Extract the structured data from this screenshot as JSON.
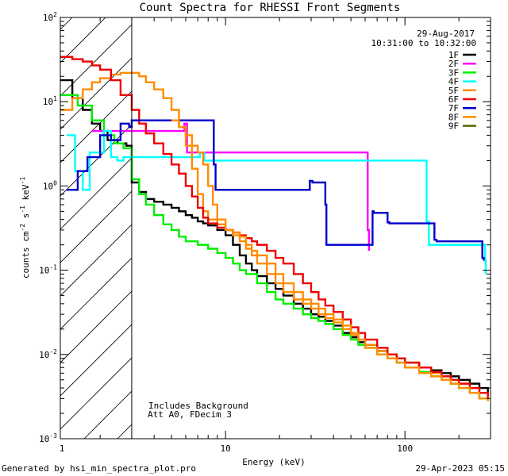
{
  "chart_data": {
    "type": "line",
    "title": "Count Spectra for RHESSI Front Segments",
    "xlabel": "Energy (keV)",
    "ylabel": {
      "base": "counts cm",
      "exp1": "-2",
      "mid1": " s",
      "exp2": "-1",
      "mid2": " keV",
      "exp3": "-1"
    },
    "xscale": "log",
    "yscale": "log",
    "xlim": [
      1.2,
      300
    ],
    "ylim": [
      0.001,
      100
    ],
    "x_ticks": [
      {
        "value": 1,
        "label": "1"
      },
      {
        "value": 10,
        "label": "10"
      },
      {
        "value": 100,
        "label": "100"
      }
    ],
    "y_ticks": [
      {
        "value": 0.001,
        "base": "10",
        "exp": "-3"
      },
      {
        "value": 0.01,
        "base": "10",
        "exp": "-2"
      },
      {
        "value": 0.1,
        "base": "10",
        "exp": "-1"
      },
      {
        "value": 1,
        "base": "10",
        "exp": "0"
      },
      {
        "value": 10,
        "base": "10",
        "exp": "1"
      },
      {
        "value": 100,
        "base": "10",
        "exp": "2"
      }
    ],
    "date": "29-Aug-2017",
    "time_range": "10:31:00 to 10:32:00",
    "shaded_region": {
      "x_start": 1.2,
      "x_end": 3.0,
      "pattern": "diagonal-hatch"
    },
    "annotations": [
      "Includes Background",
      "Att A0, FDecim 3"
    ],
    "legend_position": "top-right",
    "series": [
      {
        "name": "1F",
        "color": "#000000",
        "style": "step",
        "x": [
          1.2,
          1.4,
          1.6,
          1.8,
          2.0,
          2.2,
          2.5,
          2.8,
          3.0,
          3.3,
          3.6,
          4.0,
          4.5,
          5,
          5.5,
          6,
          6.5,
          7,
          7.5,
          8,
          9,
          10,
          11,
          12,
          13,
          14,
          15,
          17,
          19,
          21,
          24,
          27,
          30,
          33,
          36,
          40,
          45,
          50,
          55,
          60,
          70,
          80,
          90,
          100,
          120,
          140,
          160,
          180,
          200,
          230,
          260,
          290
        ],
        "y": [
          18,
          11,
          8,
          5.5,
          4.5,
          3.5,
          3.2,
          3.0,
          1.1,
          0.85,
          0.7,
          0.65,
          0.6,
          0.55,
          0.5,
          0.45,
          0.42,
          0.38,
          0.36,
          0.34,
          0.3,
          0.26,
          0.2,
          0.15,
          0.12,
          0.1,
          0.085,
          0.07,
          0.06,
          0.05,
          0.04,
          0.035,
          0.03,
          0.028,
          0.025,
          0.022,
          0.018,
          0.016,
          0.014,
          0.013,
          0.011,
          0.01,
          0.009,
          0.008,
          0.007,
          0.0065,
          0.006,
          0.0055,
          0.005,
          0.0045,
          0.004,
          0.0035
        ]
      },
      {
        "name": "2F",
        "color": "#ff00ff",
        "style": "step",
        "x": [
          1.8,
          2.2,
          2.6,
          3.0,
          5.9,
          6.1,
          62,
          63
        ],
        "y": [
          4.5,
          4.5,
          4.5,
          4.5,
          5.5,
          2.5,
          0.3,
          0.17
        ]
      },
      {
        "name": "3F",
        "color": "#00ee00",
        "style": "step",
        "x": [
          1.2,
          1.5,
          1.8,
          2.1,
          2.4,
          2.7,
          3.0,
          3.3,
          3.6,
          4,
          4.5,
          5,
          5.5,
          6,
          7,
          8,
          9,
          10,
          11,
          12,
          13,
          15,
          17,
          19,
          21,
          24,
          27,
          30,
          33,
          36,
          40,
          45,
          50,
          55,
          60,
          70,
          80,
          90,
          100,
          120,
          140,
          160,
          180,
          200,
          230,
          260,
          290
        ],
        "y": [
          12,
          9,
          6,
          4,
          3.2,
          2.8,
          1.2,
          0.8,
          0.6,
          0.45,
          0.35,
          0.3,
          0.25,
          0.22,
          0.2,
          0.18,
          0.16,
          0.14,
          0.12,
          0.1,
          0.09,
          0.07,
          0.055,
          0.045,
          0.04,
          0.035,
          0.03,
          0.027,
          0.025,
          0.023,
          0.02,
          0.017,
          0.015,
          0.013,
          0.012,
          0.01,
          0.009,
          0.008,
          0.007,
          0.0062,
          0.0055,
          0.005,
          0.0045,
          0.004,
          0.0035,
          0.003,
          0.0028
        ]
      },
      {
        "name": "4F",
        "color": "#00ffff",
        "style": "step",
        "x": [
          1.3,
          1.45,
          1.6,
          1.75,
          1.9,
          2.1,
          2.3,
          2.5,
          2.7,
          3.0,
          7.2,
          7.6,
          132,
          136,
          280,
          282
        ],
        "y": [
          4,
          1.5,
          0.9,
          2.5,
          2.5,
          4.5,
          2.2,
          2.0,
          2.2,
          2.2,
          2.5,
          2.0,
          0.38,
          0.2,
          0.13,
          0.09
        ]
      },
      {
        "name": "5F",
        "color": "#ff8c00",
        "style": "step",
        "x": [
          1.2,
          1.4,
          1.6,
          1.8,
          2.0,
          2.3,
          2.6,
          3.0,
          3.3,
          3.6,
          4,
          4.5,
          5,
          5.5,
          6,
          6.5,
          7,
          7.5,
          8,
          9,
          10,
          11,
          12,
          13,
          14,
          15,
          17,
          19,
          21,
          24,
          27,
          30,
          33,
          36,
          40,
          45,
          50,
          55,
          60,
          70,
          80,
          90,
          100,
          120,
          140,
          160,
          180,
          200,
          230,
          260,
          290
        ],
        "y": [
          8,
          11,
          14,
          17,
          19,
          21,
          22,
          22,
          20,
          17,
          14,
          11,
          8,
          5,
          3,
          1.6,
          0.8,
          0.5,
          0.4,
          0.35,
          0.3,
          0.26,
          0.22,
          0.18,
          0.15,
          0.12,
          0.09,
          0.07,
          0.055,
          0.045,
          0.04,
          0.035,
          0.03,
          0.027,
          0.024,
          0.02,
          0.017,
          0.015,
          0.013,
          0.011,
          0.01,
          0.009,
          0.008,
          0.007,
          0.006,
          0.0055,
          0.005,
          0.0045,
          0.004,
          0.0035,
          0.003
        ]
      },
      {
        "name": "6F",
        "color": "#ee0000",
        "style": "step",
        "x": [
          1.2,
          1.4,
          1.6,
          1.8,
          2.0,
          2.3,
          2.6,
          3.0,
          3.3,
          3.6,
          4,
          4.5,
          5,
          5.5,
          6,
          6.5,
          7,
          7.5,
          8,
          9,
          10,
          11,
          12,
          13,
          14,
          15,
          17,
          19,
          21,
          24,
          27,
          30,
          33,
          36,
          40,
          45,
          50,
          55,
          60,
          70,
          80,
          90,
          100,
          120,
          140,
          160,
          180,
          200,
          230,
          260,
          290
        ],
        "y": [
          34,
          32,
          30,
          27,
          24,
          18,
          12,
          8,
          5.5,
          4.2,
          3.2,
          2.4,
          1.8,
          1.4,
          1.0,
          0.75,
          0.55,
          0.42,
          0.36,
          0.32,
          0.3,
          0.28,
          0.26,
          0.24,
          0.22,
          0.2,
          0.17,
          0.14,
          0.12,
          0.09,
          0.07,
          0.055,
          0.045,
          0.038,
          0.032,
          0.026,
          0.021,
          0.018,
          0.015,
          0.012,
          0.01,
          0.009,
          0.008,
          0.007,
          0.0062,
          0.0055,
          0.005,
          0.0045,
          0.004,
          0.0035,
          0.003
        ]
      },
      {
        "name": "7F",
        "color": "#0000cc",
        "style": "step",
        "x": [
          1.3,
          1.5,
          1.7,
          2.0,
          2.3,
          2.6,
          2.9,
          3.0,
          8.6,
          8.8,
          29.5,
          30.5,
          36,
          36.5,
          66,
          67,
          80,
          82,
          146,
          150,
          270,
          275
        ],
        "y": [
          0.9,
          1.5,
          2.2,
          4.0,
          3.5,
          5.5,
          5.0,
          6.0,
          1.8,
          0.9,
          1.15,
          1.1,
          0.6,
          0.2,
          0.5,
          0.48,
          0.37,
          0.36,
          0.23,
          0.22,
          0.14,
          0.13
        ]
      },
      {
        "name": "8F",
        "color": "#ff8c00",
        "style": "step",
        "x": [
          5.0,
          5.5,
          6.0,
          6.5,
          7.0,
          7.5,
          8.0,
          8.5,
          9,
          10,
          11,
          12,
          13,
          14,
          15,
          17,
          19,
          21,
          24,
          27,
          30,
          33,
          36,
          40,
          45,
          50,
          55,
          60,
          70,
          80,
          90,
          100,
          120,
          140,
          160,
          180,
          200,
          230,
          260,
          290
        ],
        "y": [
          6,
          5,
          4,
          3,
          2.5,
          1.8,
          1.0,
          0.6,
          0.4,
          0.3,
          0.28,
          0.25,
          0.2,
          0.17,
          0.15,
          0.12,
          0.09,
          0.07,
          0.055,
          0.045,
          0.04,
          0.035,
          0.03,
          0.026,
          0.022,
          0.018,
          0.015,
          0.012,
          0.01,
          0.009,
          0.008,
          0.007,
          0.006,
          0.0055,
          0.005,
          0.0045,
          0.004,
          0.0035,
          0.003,
          0.0028
        ]
      },
      {
        "name": "9F",
        "color": "#556b00",
        "style": "step",
        "x": [],
        "y": []
      }
    ]
  },
  "footer": {
    "left": "Generated by hsi_min_spectra_plot.pro",
    "right": "29-Apr-2023 05:15"
  }
}
